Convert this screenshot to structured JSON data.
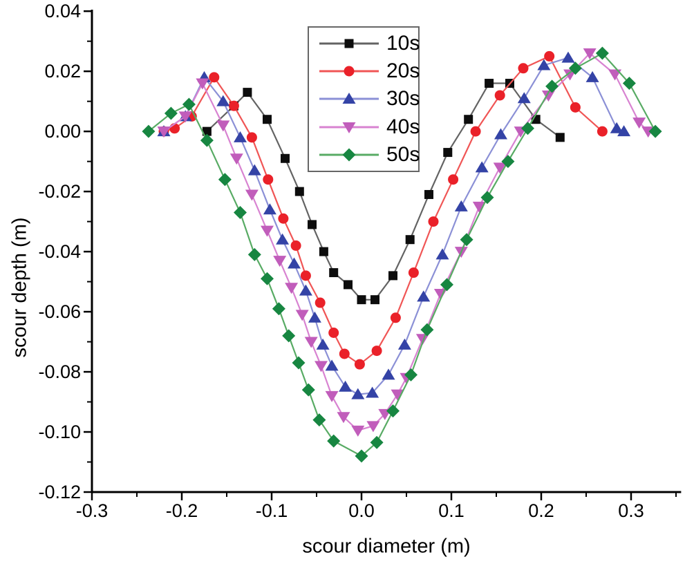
{
  "figure": {
    "background": "#ffffff",
    "legend_border_color": "#666666"
  },
  "chart_data": {
    "type": "line",
    "title": "",
    "xlabel": "scour diameter (m)",
    "ylabel": "scour depth (m)",
    "xlim": [
      -0.3,
      0.3557
    ],
    "ylim": [
      -0.12,
      0.0405
    ],
    "grid": false,
    "legend_position": "upper-center-left",
    "axis_color": "#000000",
    "x_major_ticks": [
      -0.3,
      -0.2,
      -0.1,
      0,
      0.1,
      0.2,
      0.3
    ],
    "x_tick_labels": [
      "-0.3",
      "-0.2",
      "-0.1",
      "0.0",
      "0.1",
      "0.2",
      "0.3"
    ],
    "x_minor_ticks": [
      -0.25,
      -0.15,
      -0.05,
      0.05,
      0.15,
      0.25,
      0.35
    ],
    "y_major_ticks": [
      0.04,
      0.02,
      0,
      -0.02,
      -0.04,
      -0.06,
      -0.08,
      -0.1,
      -0.12
    ],
    "y_tick_labels": [
      "0.04",
      "0.02",
      "0.00",
      "-0.02",
      "-0.04",
      "-0.06",
      "-0.08",
      "-0.10",
      "-0.12"
    ],
    "y_minor_ticks": [
      0.03,
      0.01,
      -0.01,
      -0.03,
      -0.05,
      -0.07,
      -0.09,
      -0.11
    ],
    "series": [
      {
        "name": "10s",
        "marker": "square",
        "line_color": "#636363",
        "marker_color": "#0d0d0d",
        "points": [
          [
            -0.172,
            0
          ],
          [
            -0.142,
            0.0085
          ],
          [
            -0.127,
            0.013
          ],
          [
            -0.105,
            0.004
          ],
          [
            -0.085,
            -0.009
          ],
          [
            -0.069,
            -0.02
          ],
          [
            -0.055,
            -0.031
          ],
          [
            -0.042,
            -0.04
          ],
          [
            -0.031,
            -0.047
          ],
          [
            -0.015,
            -0.051
          ],
          [
            0,
            -0.056
          ],
          [
            0.015,
            -0.056
          ],
          [
            0.035,
            -0.048
          ],
          [
            0.054,
            -0.036
          ],
          [
            0.075,
            -0.021
          ],
          [
            0.096,
            -0.007
          ],
          [
            0.119,
            0.004
          ],
          [
            0.142,
            0.016
          ],
          [
            0.165,
            0.016
          ],
          [
            0.194,
            0.004
          ],
          [
            0.221,
            -0.002
          ]
        ]
      },
      {
        "name": "20s",
        "marker": "circle",
        "line_color": "#f05555",
        "marker_color": "#ea2129",
        "points": [
          [
            -0.22,
            0
          ],
          [
            -0.208,
            0.001
          ],
          [
            -0.189,
            0.005
          ],
          [
            -0.164,
            0.018
          ],
          [
            -0.142,
            0.0085
          ],
          [
            -0.122,
            -0.002
          ],
          [
            -0.104,
            -0.016
          ],
          [
            -0.087,
            -0.029
          ],
          [
            -0.073,
            -0.038
          ],
          [
            -0.062,
            -0.048
          ],
          [
            -0.046,
            -0.057
          ],
          [
            -0.031,
            -0.067
          ],
          [
            -0.019,
            -0.074
          ],
          [
            -0.002,
            -0.0775
          ],
          [
            0.017,
            -0.073
          ],
          [
            0.038,
            -0.062
          ],
          [
            0.058,
            -0.047
          ],
          [
            0.08,
            -0.03
          ],
          [
            0.102,
            -0.016
          ],
          [
            0.127,
            0
          ],
          [
            0.154,
            0.012
          ],
          [
            0.18,
            0.021
          ],
          [
            0.209,
            0.025
          ],
          [
            0.238,
            0.008
          ],
          [
            0.268,
            0
          ]
        ]
      },
      {
        "name": "30s",
        "marker": "triangle-up",
        "line_color": "#8b90d6",
        "marker_color": "#3443a6",
        "points": [
          [
            -0.22,
            0
          ],
          [
            -0.196,
            0.005
          ],
          [
            -0.175,
            0.018
          ],
          [
            -0.154,
            0.01
          ],
          [
            -0.135,
            -0.002
          ],
          [
            -0.119,
            -0.013
          ],
          [
            -0.102,
            -0.026
          ],
          [
            -0.088,
            -0.036
          ],
          [
            -0.075,
            -0.044
          ],
          [
            -0.062,
            -0.053
          ],
          [
            -0.052,
            -0.062
          ],
          [
            -0.043,
            -0.071
          ],
          [
            -0.033,
            -0.078
          ],
          [
            -0.018,
            -0.085
          ],
          [
            -0.004,
            -0.0875
          ],
          [
            0.012,
            -0.087
          ],
          [
            0.03,
            -0.081
          ],
          [
            0.048,
            -0.071
          ],
          [
            0.069,
            -0.055
          ],
          [
            0.09,
            -0.041
          ],
          [
            0.111,
            -0.025
          ],
          [
            0.134,
            -0.012
          ],
          [
            0.155,
            -0.001
          ],
          [
            0.181,
            0.011
          ],
          [
            0.203,
            0.022
          ],
          [
            0.23,
            0.0245
          ],
          [
            0.257,
            0.018
          ],
          [
            0.284,
            0.001
          ],
          [
            0.292,
            0
          ]
        ]
      },
      {
        "name": "40s",
        "marker": "triangle-down",
        "line_color": "#d883d1",
        "marker_color": "#c15dbb",
        "points": [
          [
            -0.22,
            0
          ],
          [
            -0.196,
            0.005
          ],
          [
            -0.177,
            0.016
          ],
          [
            -0.154,
            0.002
          ],
          [
            -0.139,
            -0.009
          ],
          [
            -0.122,
            -0.021
          ],
          [
            -0.105,
            -0.033
          ],
          [
            -0.091,
            -0.043
          ],
          [
            -0.078,
            -0.052
          ],
          [
            -0.066,
            -0.061
          ],
          [
            -0.056,
            -0.07
          ],
          [
            -0.045,
            -0.078
          ],
          [
            -0.033,
            -0.088
          ],
          [
            -0.02,
            -0.095
          ],
          [
            -0.004,
            -0.0995
          ],
          [
            0.013,
            -0.098
          ],
          [
            0.026,
            -0.094
          ],
          [
            0.04,
            -0.0875
          ],
          [
            0.05,
            -0.082
          ],
          [
            0.068,
            -0.069
          ],
          [
            0.088,
            -0.054
          ],
          [
            0.111,
            -0.04
          ],
          [
            0.131,
            -0.025
          ],
          [
            0.154,
            -0.012
          ],
          [
            0.177,
            0
          ],
          [
            0.208,
            0.012
          ],
          [
            0.232,
            0.019
          ],
          [
            0.254,
            0.026
          ],
          [
            0.282,
            0.019
          ],
          [
            0.309,
            0.003
          ],
          [
            0.319,
            0
          ]
        ]
      },
      {
        "name": "50s",
        "marker": "diamond",
        "line_color": "#58ab64",
        "marker_color": "#178641",
        "points": [
          [
            -0.237,
            0
          ],
          [
            -0.212,
            0.006
          ],
          [
            -0.192,
            0.009
          ],
          [
            -0.172,
            -0.003
          ],
          [
            -0.152,
            -0.016
          ],
          [
            -0.135,
            -0.027
          ],
          [
            -0.119,
            -0.041
          ],
          [
            -0.105,
            -0.049
          ],
          [
            -0.092,
            -0.059
          ],
          [
            -0.081,
            -0.068
          ],
          [
            -0.07,
            -0.077
          ],
          [
            -0.059,
            -0.086
          ],
          [
            -0.047,
            -0.096
          ],
          [
            -0.031,
            -0.103
          ],
          [
            0,
            -0.108
          ],
          [
            0.017,
            -0.1035
          ],
          [
            0.035,
            -0.093
          ],
          [
            0.055,
            -0.081
          ],
          [
            0.073,
            -0.066
          ],
          [
            0.095,
            -0.051
          ],
          [
            0.117,
            -0.036
          ],
          [
            0.14,
            -0.022
          ],
          [
            0.163,
            -0.01
          ],
          [
            0.185,
            0.001
          ],
          [
            0.212,
            0.015
          ],
          [
            0.238,
            0.021
          ],
          [
            0.268,
            0.026
          ],
          [
            0.298,
            0.016
          ],
          [
            0.327,
            0
          ]
        ]
      }
    ]
  }
}
